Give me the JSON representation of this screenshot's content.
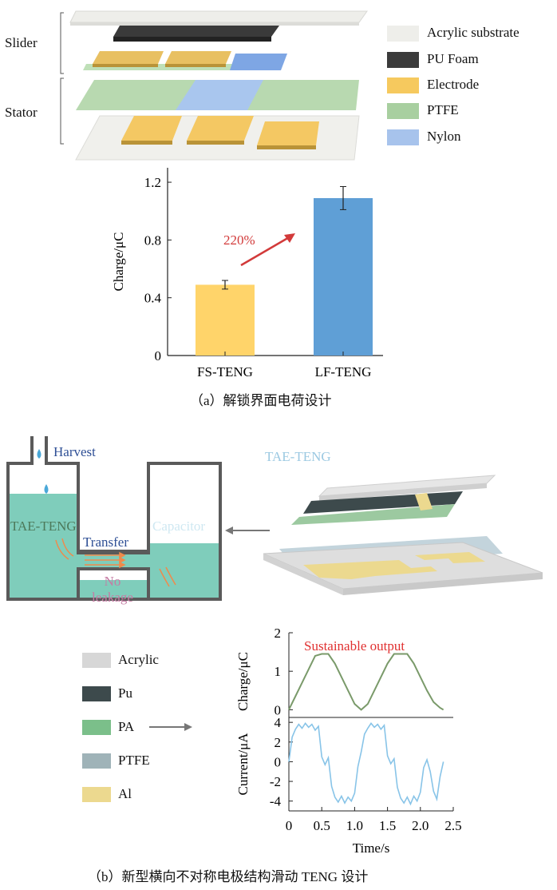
{
  "panel_a": {
    "left_labels": {
      "slider": "Slider",
      "stator": "Stator"
    },
    "legend": [
      {
        "label": "Acrylic substrate",
        "color": "#eeeeea"
      },
      {
        "label": "PU Foam",
        "color": "#3b3b3b"
      },
      {
        "label": "Electrode",
        "color": "#f6c95e"
      },
      {
        "label": "PTFE",
        "color": "#a8cfa0"
      },
      {
        "label": "Nylon",
        "color": "#a7c3ec"
      }
    ],
    "annotation": "220%",
    "caption": "（a）解锁界面电荷设计"
  },
  "chart_data": [
    {
      "type": "bar",
      "categories": [
        "FS-TENG",
        "LF-TENG"
      ],
      "values": [
        0.49,
        1.09
      ],
      "errors": [
        0.03,
        0.08
      ],
      "colors": [
        "#ffd46a",
        "#5f9fd6"
      ],
      "ylabel": "Charge/μC",
      "ylim": [
        0,
        1.3
      ],
      "yticks": [
        "0",
        "0.4",
        "0.8",
        "1.2"
      ]
    },
    {
      "type": "line",
      "ylabel": "Charge/μC",
      "annotation": "Sustainable output",
      "xlim": [
        0,
        2.5
      ],
      "ylim": [
        -0.2,
        2
      ],
      "yticks": [
        "0",
        "1",
        "2"
      ],
      "x": [
        0,
        0.1,
        0.2,
        0.3,
        0.4,
        0.5,
        0.6,
        0.7,
        0.8,
        0.9,
        1.0,
        1.1,
        1.2,
        1.3,
        1.4,
        1.5,
        1.6,
        1.7,
        1.8,
        1.9,
        2.0,
        2.1,
        2.2,
        2.3,
        2.35
      ],
      "y": [
        0,
        0.35,
        0.7,
        1.05,
        1.4,
        1.45,
        1.45,
        1.2,
        0.85,
        0.5,
        0.15,
        0.0,
        0.15,
        0.5,
        0.85,
        1.2,
        1.45,
        1.45,
        1.45,
        1.2,
        0.85,
        0.5,
        0.2,
        0.05,
        0.0
      ],
      "color": "#7a9a6a"
    },
    {
      "type": "line",
      "ylabel": "Current/μA",
      "xlabel": "Time/s",
      "xlim": [
        0,
        2.5
      ],
      "ylim": [
        -5,
        4.5
      ],
      "xticks": [
        "0",
        "0.5",
        "1.0",
        "1.5",
        "2.0",
        "2.5"
      ],
      "yticks": [
        "4",
        "2",
        "0",
        "-2",
        "-4"
      ],
      "x": [
        0,
        0.05,
        0.1,
        0.15,
        0.2,
        0.25,
        0.3,
        0.35,
        0.4,
        0.45,
        0.5,
        0.55,
        0.6,
        0.65,
        0.7,
        0.75,
        0.8,
        0.85,
        0.9,
        0.95,
        1.0,
        1.05,
        1.1,
        1.15,
        1.2,
        1.25,
        1.3,
        1.35,
        1.4,
        1.45,
        1.5,
        1.55,
        1.6,
        1.65,
        1.7,
        1.75,
        1.8,
        1.85,
        1.9,
        1.95,
        2.0,
        2.05,
        2.1,
        2.15,
        2.2,
        2.25,
        2.3,
        2.35
      ],
      "y": [
        0,
        2.5,
        3.3,
        3.8,
        3.4,
        3.9,
        3.5,
        3.8,
        3.2,
        3.6,
        0.5,
        -0.3,
        0.4,
        -2.5,
        -3.6,
        -4.1,
        -3.5,
        -4.2,
        -3.6,
        -4.0,
        -3.2,
        -0.5,
        1.0,
        2.8,
        3.4,
        3.9,
        3.5,
        3.8,
        3.3,
        3.7,
        0.6,
        -0.2,
        0.3,
        -2.6,
        -3.7,
        -4.2,
        -3.6,
        -4.3,
        -3.5,
        -4.0,
        -3.1,
        -0.6,
        0.2,
        -1.0,
        -3.0,
        -3.8,
        -1.5,
        0.0
      ],
      "color": "#88c4e8"
    }
  ],
  "panel_b": {
    "harvest": "Harvest",
    "tae_teng_tank": "TAE-TENG",
    "transfer": "Transfer",
    "capacitor": "Capacitor",
    "no_leakage": "No\nleakage",
    "tae_teng_title": "TAE-TENG",
    "legend": [
      {
        "label": "Acrylic",
        "color": "#d7d7d7"
      },
      {
        "label": "Pu",
        "color": "#3d4a4c"
      },
      {
        "label": "PA",
        "color": "#7bbf8a"
      },
      {
        "label": "PTFE",
        "color": "#9fb3b8"
      },
      {
        "label": "Al",
        "color": "#ecd98f"
      }
    ],
    "caption": "（b）新型横向不对称电极结构滑动 TENG 设计"
  }
}
